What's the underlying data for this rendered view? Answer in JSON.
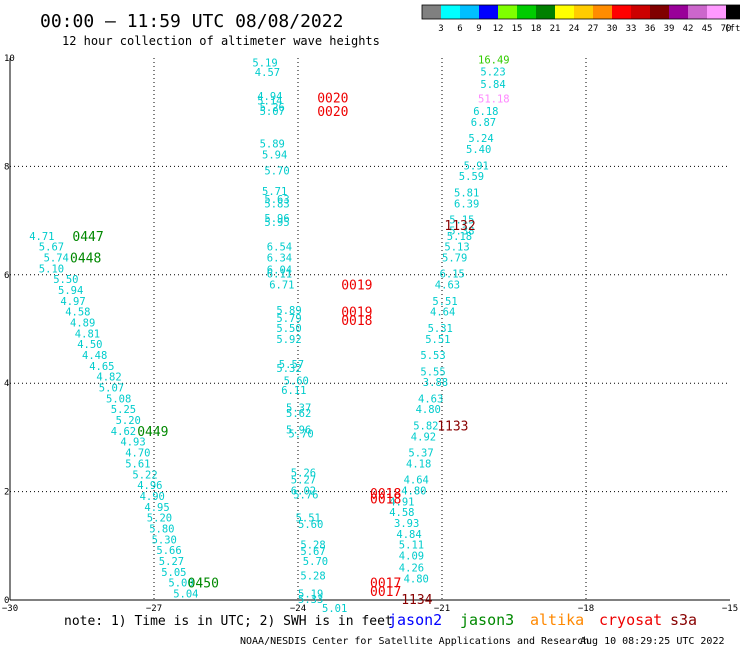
{
  "chart_data": {
    "type": "scatter",
    "title": "00:00 – 11:59 UTC 08/08/2022",
    "subtitle": "12 hour collection of altimeter wave heights",
    "xlim": [
      -30,
      -15
    ],
    "ylim": [
      0,
      10
    ],
    "x_ticks": [
      "−30",
      "−27",
      "−24",
      "−21",
      "−18",
      "−15"
    ],
    "y_ticks": [
      "0",
      "2",
      "4",
      "6",
      "8",
      "10"
    ],
    "grid": true,
    "scale": {
      "labels": [
        "3",
        "6",
        "9",
        "12",
        "15",
        "18",
        "21",
        "24",
        "27",
        "30",
        "33",
        "36",
        "39",
        "42",
        "45",
        "70"
      ],
      "unit": "(ft)",
      "colors": [
        "#808080",
        "#00ffff",
        "#00bfff",
        "#0000ff",
        "#7fff00",
        "#00cc00",
        "#008000",
        "#ffff00",
        "#ffcc00",
        "#ff8c00",
        "#ff0000",
        "#cc0000",
        "#800000",
        "#990099",
        "#cc66cc",
        "#ff99ff",
        "#000000"
      ]
    },
    "series": [
      {
        "satellite": "jason3",
        "color": "#00cccc",
        "points": [
          [
            -29.6,
            6.72,
            "4.71"
          ],
          [
            -29.4,
            6.52,
            "5.67"
          ],
          [
            -29.3,
            6.32,
            "5.74"
          ],
          [
            -29.4,
            6.12,
            "5.10"
          ],
          [
            -29.1,
            5.92,
            "5.50"
          ],
          [
            -29.0,
            5.72,
            "5.94"
          ],
          [
            -28.95,
            5.52,
            "4.97"
          ],
          [
            -28.85,
            5.32,
            "4.58"
          ],
          [
            -28.75,
            5.12,
            "4.89"
          ],
          [
            -28.65,
            4.92,
            "4.81"
          ],
          [
            -28.6,
            4.72,
            "4.50"
          ],
          [
            -28.5,
            4.52,
            "4.48"
          ],
          [
            -28.35,
            4.32,
            "4.65"
          ],
          [
            -28.2,
            4.12,
            "4.82"
          ],
          [
            -28.15,
            3.92,
            "5.07"
          ],
          [
            -28.0,
            3.72,
            "5.08"
          ],
          [
            -27.9,
            3.52,
            "5.25"
          ],
          [
            -27.8,
            3.32,
            "5.20"
          ],
          [
            -27.9,
            3.12,
            "4.62"
          ],
          [
            -27.7,
            2.92,
            "4.93"
          ],
          [
            -27.6,
            2.72,
            "4.70"
          ],
          [
            -27.6,
            2.52,
            "5.61"
          ],
          [
            -27.45,
            2.32,
            "5.22"
          ],
          [
            -27.35,
            2.12,
            "4.96"
          ],
          [
            -27.3,
            1.92,
            "4.90"
          ],
          [
            -27.2,
            1.72,
            "4.95"
          ],
          [
            -27.15,
            1.52,
            "5.20"
          ],
          [
            -27.1,
            1.32,
            "5.80"
          ],
          [
            -27.05,
            1.12,
            "5.30"
          ],
          [
            -26.95,
            0.92,
            "5.66"
          ],
          [
            -26.9,
            0.72,
            "5.27"
          ],
          [
            -26.85,
            0.52,
            "5.05"
          ],
          [
            -26.7,
            0.32,
            "5.00"
          ],
          [
            -26.6,
            0.12,
            "5.04"
          ]
        ]
      },
      {
        "satellite": "jason3",
        "color": "#00cccc",
        "points": [
          [
            -24.95,
            9.92,
            "5.19"
          ],
          [
            -24.9,
            9.74,
            "4.57"
          ],
          [
            -24.85,
            9.3,
            "4.94"
          ],
          [
            -24.85,
            9.22,
            "5.14"
          ],
          [
            -24.8,
            9.1,
            "5.26"
          ],
          [
            -24.8,
            9.02,
            "5.07"
          ],
          [
            -24.8,
            8.42,
            "5.89"
          ],
          [
            -24.75,
            8.22,
            "5.94"
          ],
          [
            -24.7,
            7.92,
            "5.70"
          ],
          [
            -24.75,
            7.55,
            "5.71"
          ],
          [
            -24.7,
            7.4,
            "5.63"
          ],
          [
            -24.7,
            7.32,
            "5.83"
          ],
          [
            -24.7,
            7.05,
            "5.96"
          ],
          [
            -24.7,
            6.97,
            "5.95"
          ],
          [
            -24.65,
            6.52,
            "6.54"
          ],
          [
            -24.65,
            6.32,
            "6.34"
          ],
          [
            -24.65,
            6.1,
            "6.04"
          ],
          [
            -24.65,
            6.02,
            "6.11"
          ],
          [
            -24.6,
            5.82,
            "6.71"
          ],
          [
            -24.45,
            5.35,
            "5.89"
          ],
          [
            -24.45,
            5.2,
            "5.79"
          ],
          [
            -24.45,
            5.02,
            "5.50"
          ],
          [
            -24.45,
            4.82,
            "5.92"
          ],
          [
            -24.4,
            4.35,
            "5.57"
          ],
          [
            -24.45,
            4.28,
            "5.32"
          ],
          [
            -24.3,
            4.05,
            "5.60"
          ],
          [
            -24.35,
            3.87,
            "6.11"
          ],
          [
            -24.25,
            3.55,
            "5.37"
          ],
          [
            -24.25,
            3.45,
            "5.62"
          ],
          [
            -24.25,
            3.15,
            "5.96"
          ],
          [
            -24.2,
            3.07,
            "5.70"
          ],
          [
            -24.15,
            2.35,
            "5.26"
          ],
          [
            -24.15,
            2.22,
            "5.27"
          ],
          [
            -24.15,
            2.02,
            "6.02"
          ],
          [
            -24.1,
            1.95,
            "5.76"
          ],
          [
            -24.05,
            1.52,
            "5.51"
          ],
          [
            -24.0,
            1.4,
            "5.60"
          ],
          [
            -23.95,
            1.02,
            "5.28"
          ],
          [
            -23.95,
            0.9,
            "5.67"
          ],
          [
            -23.9,
            0.72,
            "5.70"
          ],
          [
            -23.95,
            0.45,
            "5.28"
          ],
          [
            -24.0,
            0.12,
            "5.19"
          ],
          [
            -24.0,
            0.02,
            "5.33"
          ],
          [
            -23.5,
            -0.15,
            "5.01"
          ]
        ]
      },
      {
        "satellite": "jason3",
        "color": "#00cccc",
        "points": [
          [
            -22.1,
            1.82,
            "4.91"
          ],
          [
            -22.1,
            1.62,
            "4.58"
          ],
          [
            -22.0,
            1.42,
            "3.93"
          ],
          [
            -21.95,
            1.22,
            "4.84"
          ],
          [
            -21.9,
            1.02,
            "5.11"
          ],
          [
            -21.9,
            0.82,
            "4.09"
          ],
          [
            -21.9,
            0.6,
            "4.26"
          ],
          [
            -21.8,
            0.4,
            "4.80"
          ],
          [
            -21.85,
            2.02,
            "4.80"
          ],
          [
            -21.8,
            2.22,
            "4.64"
          ],
          [
            -21.75,
            2.52,
            "4.18"
          ],
          [
            -21.7,
            2.72,
            "5.37"
          ],
          [
            -21.65,
            3.02,
            "4.92"
          ],
          [
            -21.6,
            3.22,
            "5.82"
          ],
          [
            -21.55,
            3.52,
            "4.80"
          ],
          [
            -21.5,
            3.72,
            "4.63"
          ],
          [
            -21.4,
            4.02,
            "3.88"
          ],
          [
            -21.45,
            4.22,
            "5.55"
          ],
          [
            -21.45,
            4.52,
            "5.53"
          ],
          [
            -21.35,
            4.82,
            "5.51"
          ],
          [
            -21.3,
            5.02,
            "5.31"
          ],
          [
            -21.25,
            5.32,
            "4.64"
          ],
          [
            -21.2,
            5.52,
            "5.51"
          ],
          [
            -21.15,
            5.82,
            "4.63"
          ],
          [
            -21.05,
            6.02,
            "6.15"
          ],
          [
            -21.0,
            6.32,
            "5.79"
          ],
          [
            -20.95,
            6.52,
            "5.13"
          ],
          [
            -20.9,
            6.72,
            "5.18"
          ],
          [
            -20.85,
            6.82,
            "5.38"
          ],
          [
            -20.85,
            7.02,
            "5.15"
          ],
          [
            -20.75,
            7.32,
            "6.39"
          ],
          [
            -20.75,
            7.52,
            "5.81"
          ],
          [
            -20.65,
            7.82,
            "5.59"
          ],
          [
            -20.55,
            8.02,
            "5.91"
          ],
          [
            -20.5,
            8.32,
            "5.40"
          ],
          [
            -20.45,
            8.52,
            "5.24"
          ],
          [
            -20.4,
            8.82,
            "6.87"
          ],
          [
            -20.35,
            9.02,
            "6.18"
          ],
          [
            -20.2,
            9.52,
            "5.84"
          ],
          [
            -20.2,
            9.75,
            "5.23"
          ]
        ]
      },
      {
        "satellite": "jason3",
        "color": "#33cc00",
        "points": [
          [
            -20.25,
            9.97,
            "16.49"
          ]
        ]
      },
      {
        "satellite": "jason3",
        "color": "#ff88ff",
        "points": [
          [
            -20.25,
            9.25,
            "51.18"
          ]
        ]
      }
    ],
    "time_labels": [
      {
        "x": -28.7,
        "y": 6.72,
        "label": "0447",
        "color": "#008800"
      },
      {
        "x": -28.75,
        "y": 6.32,
        "label": "0448",
        "color": "#008800"
      },
      {
        "x": -27.35,
        "y": 3.12,
        "label": "0449",
        "color": "#008800"
      },
      {
        "x": -26.3,
        "y": 0.32,
        "label": "0450",
        "color": "#008800"
      },
      {
        "x": -23.6,
        "y": 9.27,
        "label": "0020",
        "color": "#ee0000"
      },
      {
        "x": -23.6,
        "y": 9.02,
        "label": "0020",
        "color": "#ee0000"
      },
      {
        "x": -23.1,
        "y": 5.82,
        "label": "0019",
        "color": "#ee0000"
      },
      {
        "x": -23.1,
        "y": 5.32,
        "label": "0019",
        "color": "#ee0000"
      },
      {
        "x": -23.1,
        "y": 5.17,
        "label": "0018",
        "color": "#ee0000"
      },
      {
        "x": -22.5,
        "y": 1.97,
        "label": "0018",
        "color": "#ee0000"
      },
      {
        "x": -22.5,
        "y": 1.87,
        "label": "0018",
        "color": "#ee0000"
      },
      {
        "x": -22.5,
        "y": 0.32,
        "label": "0017",
        "color": "#ee0000"
      },
      {
        "x": -22.5,
        "y": 0.17,
        "label": "0017",
        "color": "#ee0000"
      },
      {
        "x": -20.95,
        "y": 6.92,
        "label": "1132",
        "color": "#880000"
      },
      {
        "x": -21.1,
        "y": 3.22,
        "label": "1133",
        "color": "#880000"
      },
      {
        "x": -21.85,
        "y": 0.02,
        "label": "1134",
        "color": "#880000"
      }
    ]
  },
  "footer": {
    "note": "note: 1) Time is in UTC; 2) SWH is in feet",
    "credit": "NOAA/NESDIS Center for Satellite Applications and Research",
    "timestamp": "Aug 10 08:29:25 UTC 2022",
    "legend": [
      {
        "name": "jason2",
        "color": "#0000ff"
      },
      {
        "name": "jason3",
        "color": "#008800"
      },
      {
        "name": "altika",
        "color": "#ff8800"
      },
      {
        "name": "cryosat",
        "color": "#ee0000"
      },
      {
        "name": "s3a",
        "color": "#880000"
      }
    ]
  }
}
